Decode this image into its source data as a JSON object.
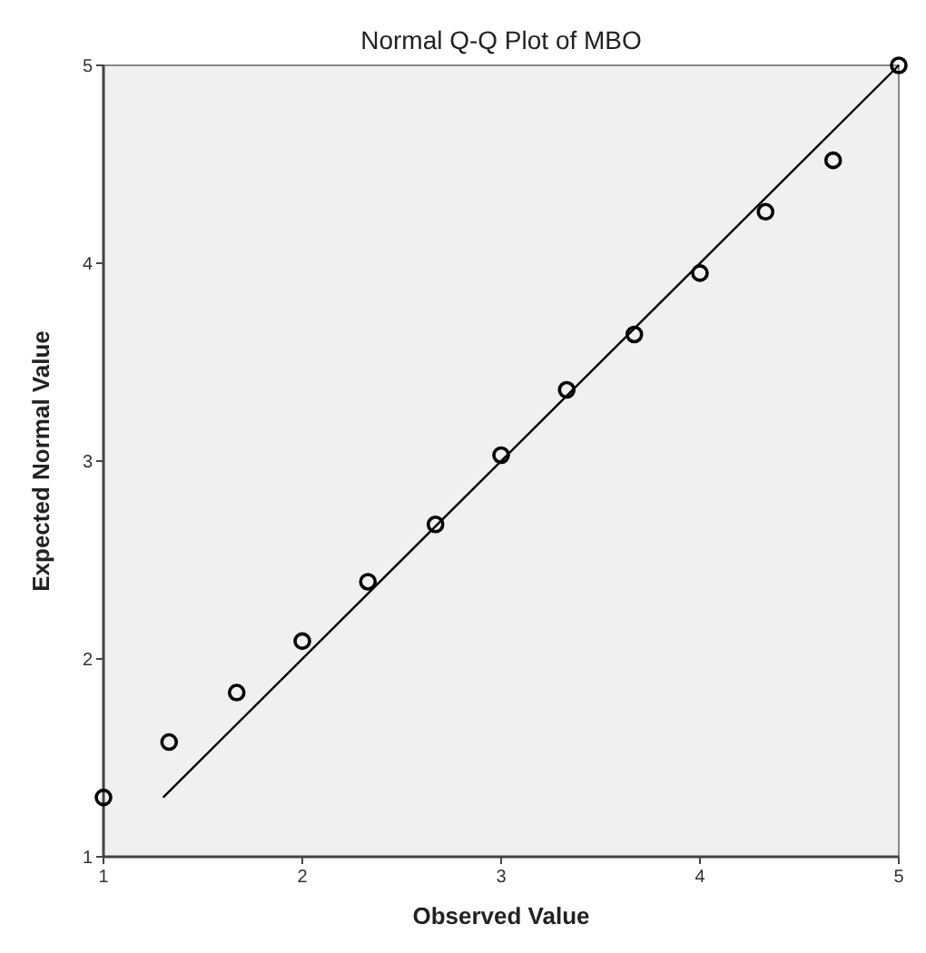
{
  "chart_data": {
    "type": "scatter",
    "title": "Normal Q-Q Plot of MBO",
    "xlabel": "Observed Value",
    "ylabel": "Expected Normal Value",
    "xlim": [
      1,
      5
    ],
    "ylim": [
      1,
      5
    ],
    "xticks": [
      1,
      2,
      3,
      4,
      5
    ],
    "yticks": [
      1,
      2,
      3,
      4,
      5
    ],
    "grid": false,
    "series": [
      {
        "marker": "circle",
        "color": "#000000",
        "x": [
          1,
          1.33,
          1.67,
          2,
          2.33,
          2.67,
          3,
          3.33,
          3.67,
          4,
          4.33,
          4.67,
          5
        ],
        "values": [
          1.3,
          1.58,
          1.83,
          2.09,
          2.39,
          2.68,
          3.03,
          3.36,
          3.64,
          3.95,
          4.26,
          4.52,
          5
        ]
      },
      {
        "type": "line",
        "marker": "none",
        "color": "#000000",
        "x": [
          1.3,
          5
        ],
        "values": [
          1.3,
          5
        ]
      }
    ]
  }
}
